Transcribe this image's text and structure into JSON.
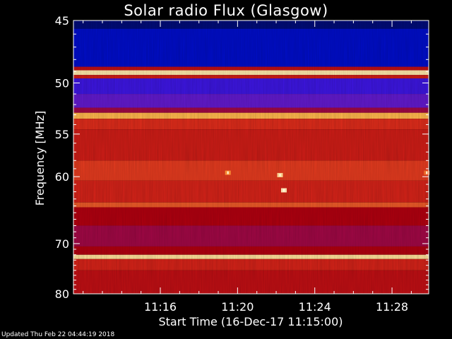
{
  "colors": {
    "background": "#000000",
    "axis": "#ffffff",
    "colormap": [
      "#000a3c",
      "#0010ff",
      "#7a1cc0",
      "#b00010",
      "#e2311c",
      "#ffb040",
      "#fff4c0"
    ]
  },
  "chart_data": {
    "type": "heatmap",
    "title": "Solar radio Flux (Glasgow)",
    "xlabel": "Start Time (16-Dec-17 11:15:00)",
    "ylabel": "Frequency [MHz]",
    "x_range_minutes": [
      11.5,
      29.9
    ],
    "y_range_mhz": [
      45,
      80
    ],
    "x_ticks": [
      {
        "label": "11:16",
        "minute": 16
      },
      {
        "label": "11:20",
        "minute": 20
      },
      {
        "label": "11:24",
        "minute": 24
      },
      {
        "label": "11:28",
        "minute": 28
      }
    ],
    "y_ticks": [
      {
        "label": "45",
        "mhz": 45
      },
      {
        "label": "50",
        "mhz": 50
      },
      {
        "label": "55",
        "mhz": 55
      },
      {
        "label": "60",
        "mhz": 60
      },
      {
        "label": "70",
        "mhz": 70
      },
      {
        "label": "80",
        "mhz": 80
      }
    ],
    "y_scale": "reciprocal",
    "intensity_scale": "relative 0-1",
    "frequency_bands": [
      {
        "f_start": 45.0,
        "f_end": 45.6,
        "intensity": 0.05
      },
      {
        "f_start": 45.6,
        "f_end": 48.6,
        "intensity": 0.12
      },
      {
        "f_start": 48.6,
        "f_end": 48.9,
        "intensity": 0.55
      },
      {
        "f_start": 48.9,
        "f_end": 49.3,
        "intensity": 0.97
      },
      {
        "f_start": 49.3,
        "f_end": 49.6,
        "intensity": 0.6
      },
      {
        "f_start": 49.6,
        "f_end": 51.0,
        "intensity": 0.25
      },
      {
        "f_start": 51.0,
        "f_end": 52.3,
        "intensity": 0.3
      },
      {
        "f_start": 52.3,
        "f_end": 52.8,
        "intensity": 0.45
      },
      {
        "f_start": 52.8,
        "f_end": 53.4,
        "intensity": 0.85
      },
      {
        "f_start": 53.4,
        "f_end": 54.5,
        "intensity": 0.65
      },
      {
        "f_start": 54.5,
        "f_end": 58.0,
        "intensity": 0.6
      },
      {
        "f_start": 58.0,
        "f_end": 60.5,
        "intensity": 0.68
      },
      {
        "f_start": 60.5,
        "f_end": 63.5,
        "intensity": 0.62
      },
      {
        "f_start": 63.5,
        "f_end": 64.2,
        "intensity": 0.72
      },
      {
        "f_start": 64.2,
        "f_end": 67.0,
        "intensity": 0.5
      },
      {
        "f_start": 67.0,
        "f_end": 70.5,
        "intensity": 0.45
      },
      {
        "f_start": 70.5,
        "f_end": 72.0,
        "intensity": 0.5
      },
      {
        "f_start": 72.0,
        "f_end": 72.8,
        "intensity": 0.95
      },
      {
        "f_start": 72.8,
        "f_end": 75.0,
        "intensity": 0.62
      },
      {
        "f_start": 75.0,
        "f_end": 80.0,
        "intensity": 0.55
      }
    ],
    "bursts": [
      {
        "minute": 22.2,
        "mhz": 59.8,
        "intensity": 0.95
      },
      {
        "minute": 22.4,
        "mhz": 61.8,
        "intensity": 1.0
      },
      {
        "minute": 19.5,
        "mhz": 59.5,
        "intensity": 0.8
      },
      {
        "minute": 29.8,
        "mhz": 59.5,
        "intensity": 0.75
      }
    ],
    "grid": false
  },
  "footer": "Updated Thu Feb 22 04:44:19 2018"
}
